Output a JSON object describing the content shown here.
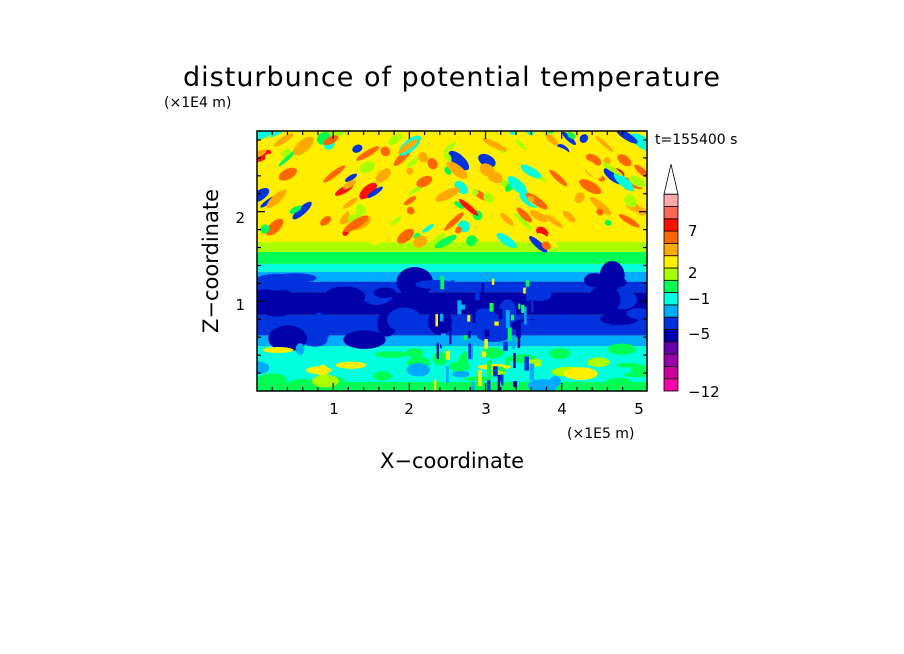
{
  "chart_data": {
    "type": "heatmap",
    "title": "disturbunce of potential temperature",
    "time_label": "t=155400 s",
    "xlabel": "X−coordinate",
    "ylabel": "Z−coordinate",
    "x_unit": "(×1E5 m)",
    "y_unit": "(×1E4 m)",
    "xlim": [
      0,
      5.12
    ],
    "ylim": [
      0,
      2.9
    ],
    "x_ticks": [
      "1",
      "2",
      "3",
      "4",
      "5"
    ],
    "y_ticks": [
      "1",
      "2"
    ],
    "colorbar": {
      "tick_labels": [
        "7",
        "2",
        "−1",
        "−5",
        "−12"
      ],
      "colors": [
        "#ff00aa",
        "#cc0099",
        "#9900aa",
        "#6600aa",
        "#0000aa",
        "#0033dd",
        "#00aaff",
        "#00ffdd",
        "#00ff55",
        "#aaff00",
        "#ffee00",
        "#ffaa00",
        "#ff6600",
        "#ff1100",
        "#ff6655",
        "#ffaaaa"
      ],
      "extend": "max"
    },
    "bands": [
      {
        "z": [
          0.0,
          0.5
        ],
        "dominant": "cyan/green, weak"
      },
      {
        "z": [
          0.5,
          1.3
        ],
        "dominant": "dark blue, strongest negative"
      },
      {
        "z": [
          1.3,
          1.6
        ],
        "dominant": "green/yellow"
      },
      {
        "z": [
          1.6,
          2.9
        ],
        "dominant": "yellow/orange, positive gravity-wave pattern"
      }
    ]
  }
}
